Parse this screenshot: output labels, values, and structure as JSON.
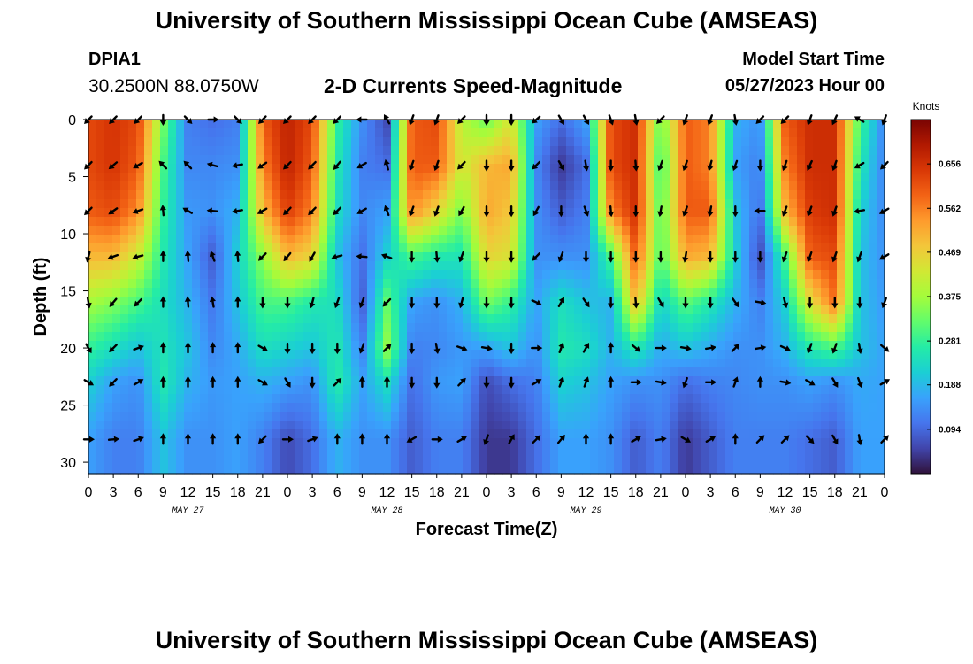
{
  "header": {
    "title": "University of Southern Mississippi Ocean Cube (AMSEAS)",
    "station": "DPIA1",
    "coordinates": "30.2500N  88.0750W",
    "subtitle": "2-D Currents Speed-Magnitude",
    "model_start_label": "Model Start Time",
    "model_start_value": "05/27/2023 Hour 00"
  },
  "footer": {
    "title": "University of Southern Mississippi Ocean Cube (AMSEAS)"
  },
  "colors": {
    "scale": [
      "#30123b",
      "#4145ab",
      "#4675ed",
      "#39a2fc",
      "#1bcfd4",
      "#24eca6",
      "#61fc6c",
      "#a4fc3b",
      "#d1e834",
      "#f3c63a",
      "#fe9b2d",
      "#f36315",
      "#d93806",
      "#b11901",
      "#7a0403"
    ],
    "arrow": "#000000"
  },
  "chart_data": {
    "type": "heatmap",
    "title": "2-D Currents Speed-Magnitude",
    "xlabel": "Forecast Time(Z)",
    "ylabel": "Depth (ft)",
    "colorbar_label": "Knots",
    "colorbar_ticks": [
      "0.094",
      "0.188",
      "0.281",
      "0.375",
      "0.469",
      "0.562",
      "0.656"
    ],
    "color_range": [
      0.0,
      0.75
    ],
    "x_range_hours": [
      0,
      96
    ],
    "x_ticks_hours": [
      0,
      3,
      6,
      9,
      12,
      15,
      18,
      21,
      24,
      27,
      30,
      33,
      36,
      39,
      42,
      45,
      48,
      51,
      54,
      57,
      60,
      63,
      66,
      69,
      72,
      75,
      78,
      81,
      84,
      87,
      90,
      93,
      96
    ],
    "x_tick_labels": [
      "0",
      "3",
      "6",
      "9",
      "12",
      "15",
      "18",
      "21",
      "0",
      "3",
      "6",
      "9",
      "12",
      "15",
      "18",
      "21",
      "0",
      "3",
      "6",
      "9",
      "12",
      "15",
      "18",
      "21",
      "0",
      "3",
      "6",
      "9",
      "12",
      "15",
      "18",
      "21",
      "0"
    ],
    "date_labels": [
      {
        "label": "MAY 27",
        "hour": 12
      },
      {
        "label": "MAY 28",
        "hour": 36
      },
      {
        "label": "MAY 29",
        "hour": 60
      },
      {
        "label": "MAY 30",
        "hour": 84
      }
    ],
    "y_range_ft": [
      0,
      31
    ],
    "y_ticks": [
      0,
      5,
      10,
      15,
      20,
      25,
      30
    ],
    "profiles": [
      {
        "hour": 0,
        "speeds": [
          0.62,
          0.62,
          0.6,
          0.5,
          0.38,
          0.28,
          0.22,
          0.16
        ]
      },
      {
        "hour": 3,
        "speeds": [
          0.65,
          0.65,
          0.62,
          0.5,
          0.35,
          0.24,
          0.16,
          0.12
        ]
      },
      {
        "hour": 6,
        "speeds": [
          0.62,
          0.6,
          0.55,
          0.42,
          0.3,
          0.2,
          0.14,
          0.12
        ]
      },
      {
        "hour": 9,
        "speeds": [
          0.34,
          0.3,
          0.28,
          0.26,
          0.24,
          0.25,
          0.26,
          0.2
        ]
      },
      {
        "hour": 12,
        "speeds": [
          0.12,
          0.13,
          0.15,
          0.16,
          0.18,
          0.2,
          0.18,
          0.14
        ]
      },
      {
        "hour": 15,
        "speeds": [
          0.1,
          0.13,
          0.14,
          0.08,
          0.11,
          0.13,
          0.15,
          0.14
        ]
      },
      {
        "hour": 18,
        "speeds": [
          0.12,
          0.14,
          0.18,
          0.22,
          0.2,
          0.17,
          0.16,
          0.16
        ]
      },
      {
        "hour": 21,
        "speeds": [
          0.6,
          0.56,
          0.5,
          0.36,
          0.3,
          0.24,
          0.18,
          0.12
        ]
      },
      {
        "hour": 24,
        "speeds": [
          0.68,
          0.68,
          0.64,
          0.5,
          0.3,
          0.22,
          0.16,
          0.06
        ]
      },
      {
        "hour": 27,
        "speeds": [
          0.62,
          0.6,
          0.56,
          0.46,
          0.26,
          0.2,
          0.14,
          0.1
        ]
      },
      {
        "hour": 30,
        "speeds": [
          0.28,
          0.26,
          0.24,
          0.2,
          0.24,
          0.26,
          0.27,
          0.18
        ]
      },
      {
        "hour": 33,
        "speeds": [
          0.14,
          0.12,
          0.13,
          0.1,
          0.08,
          0.12,
          0.16,
          0.14
        ]
      },
      {
        "hour": 36,
        "speeds": [
          0.06,
          0.1,
          0.16,
          0.22,
          0.32,
          0.36,
          0.24,
          0.14
        ]
      },
      {
        "hour": 39,
        "speeds": [
          0.6,
          0.6,
          0.55,
          0.3,
          0.16,
          0.12,
          0.1,
          0.08
        ]
      },
      {
        "hour": 42,
        "speeds": [
          0.62,
          0.6,
          0.46,
          0.26,
          0.14,
          0.13,
          0.15,
          0.12
        ]
      },
      {
        "hour": 45,
        "speeds": [
          0.4,
          0.42,
          0.34,
          0.25,
          0.18,
          0.15,
          0.16,
          0.12
        ]
      },
      {
        "hour": 48,
        "speeds": [
          0.32,
          0.5,
          0.52,
          0.46,
          0.34,
          0.16,
          0.06,
          0.04
        ]
      },
      {
        "hour": 51,
        "speeds": [
          0.44,
          0.52,
          0.48,
          0.44,
          0.28,
          0.2,
          0.1,
          0.04
        ]
      },
      {
        "hour": 54,
        "speeds": [
          0.16,
          0.13,
          0.14,
          0.14,
          0.16,
          0.14,
          0.12,
          0.1
        ]
      },
      {
        "hour": 57,
        "speeds": [
          0.1,
          0.04,
          0.08,
          0.14,
          0.24,
          0.26,
          0.22,
          0.16
        ]
      },
      {
        "hour": 60,
        "speeds": [
          0.16,
          0.1,
          0.12,
          0.14,
          0.2,
          0.24,
          0.2,
          0.16
        ]
      },
      {
        "hour": 63,
        "speeds": [
          0.62,
          0.62,
          0.56,
          0.3,
          0.18,
          0.18,
          0.16,
          0.14
        ]
      },
      {
        "hour": 66,
        "speeds": [
          0.66,
          0.66,
          0.66,
          0.6,
          0.5,
          0.26,
          0.14,
          0.08
        ]
      },
      {
        "hour": 69,
        "speeds": [
          0.32,
          0.28,
          0.3,
          0.3,
          0.22,
          0.17,
          0.14,
          0.12
        ]
      },
      {
        "hour": 72,
        "speeds": [
          0.6,
          0.6,
          0.6,
          0.52,
          0.32,
          0.2,
          0.1,
          0.04
        ]
      },
      {
        "hour": 75,
        "speeds": [
          0.56,
          0.56,
          0.6,
          0.5,
          0.26,
          0.17,
          0.12,
          0.08
        ]
      },
      {
        "hour": 78,
        "speeds": [
          0.18,
          0.16,
          0.2,
          0.22,
          0.18,
          0.14,
          0.13,
          0.12
        ]
      },
      {
        "hour": 81,
        "speeds": [
          0.14,
          0.12,
          0.1,
          0.06,
          0.12,
          0.14,
          0.14,
          0.12
        ]
      },
      {
        "hour": 84,
        "speeds": [
          0.6,
          0.56,
          0.5,
          0.3,
          0.22,
          0.18,
          0.14,
          0.12
        ]
      },
      {
        "hour": 87,
        "speeds": [
          0.66,
          0.66,
          0.64,
          0.6,
          0.44,
          0.26,
          0.16,
          0.1
        ]
      },
      {
        "hour": 90,
        "speeds": [
          0.66,
          0.66,
          0.66,
          0.62,
          0.58,
          0.3,
          0.14,
          0.08
        ]
      },
      {
        "hour": 93,
        "speeds": [
          0.3,
          0.26,
          0.22,
          0.2,
          0.2,
          0.2,
          0.17,
          0.16
        ]
      },
      {
        "hour": 96,
        "speeds": [
          0.12,
          0.12,
          0.13,
          0.14,
          0.15,
          0.16,
          0.16,
          0.16
        ]
      }
    ],
    "arrow_depths_ft": [
      0,
      4,
      8,
      12,
      16,
      20,
      23,
      28
    ],
    "arrow_directions_deg": [
      [
        225,
        225,
        225,
        195,
        170,
        150,
        120,
        90
      ],
      [
        225,
        230,
        235,
        250,
        220,
        225,
        225,
        85
      ],
      [
        225,
        240,
        250,
        255,
        225,
        70,
        60,
        70
      ],
      [
        180,
        315,
        355,
        0,
        0,
        0,
        0,
        0
      ],
      [
        135,
        315,
        300,
        355,
        355,
        0,
        0,
        0
      ],
      [
        90,
        285,
        275,
        340,
        350,
        0,
        0,
        0
      ],
      [
        135,
        260,
        260,
        355,
        0,
        0,
        0,
        0
      ],
      [
        225,
        235,
        240,
        225,
        180,
        120,
        120,
        225
      ],
      [
        225,
        225,
        225,
        220,
        180,
        180,
        150,
        90
      ],
      [
        225,
        225,
        225,
        210,
        195,
        180,
        180,
        70
      ],
      [
        225,
        220,
        225,
        255,
        200,
        180,
        45,
        0
      ],
      [
        270,
        240,
        240,
        275,
        200,
        200,
        0,
        0
      ],
      [
        330,
        345,
        340,
        290,
        225,
        45,
        0,
        0
      ],
      [
        200,
        200,
        200,
        180,
        180,
        180,
        180,
        240
      ],
      [
        200,
        200,
        200,
        175,
        180,
        170,
        180,
        90
      ],
      [
        225,
        225,
        210,
        200,
        195,
        110,
        45,
        60
      ],
      [
        180,
        180,
        180,
        180,
        180,
        100,
        180,
        200
      ],
      [
        180,
        180,
        180,
        180,
        180,
        180,
        180,
        30
      ],
      [
        230,
        225,
        210,
        225,
        115,
        90,
        60,
        45
      ],
      [
        150,
        150,
        180,
        200,
        30,
        20,
        20,
        40
      ],
      [
        150,
        170,
        160,
        180,
        145,
        30,
        20,
        0
      ],
      [
        160,
        180,
        175,
        180,
        180,
        0,
        0,
        0
      ],
      [
        170,
        175,
        180,
        180,
        175,
        130,
        90,
        60
      ],
      [
        225,
        200,
        190,
        180,
        150,
        90,
        100,
        80
      ],
      [
        200,
        200,
        200,
        190,
        180,
        100,
        200,
        120
      ],
      [
        200,
        195,
        190,
        180,
        180,
        80,
        90,
        60
      ],
      [
        170,
        200,
        180,
        180,
        145,
        45,
        20,
        0
      ],
      [
        225,
        180,
        270,
        180,
        100,
        80,
        0,
        45
      ],
      [
        225,
        200,
        200,
        200,
        165,
        115,
        100,
        45
      ],
      [
        200,
        205,
        200,
        200,
        180,
        200,
        120,
        135
      ],
      [
        205,
        200,
        200,
        200,
        180,
        200,
        150,
        150
      ],
      [
        300,
        240,
        260,
        200,
        180,
        170,
        160,
        170
      ],
      [
        200,
        225,
        240,
        240,
        200,
        130,
        60,
        45
      ]
    ]
  }
}
